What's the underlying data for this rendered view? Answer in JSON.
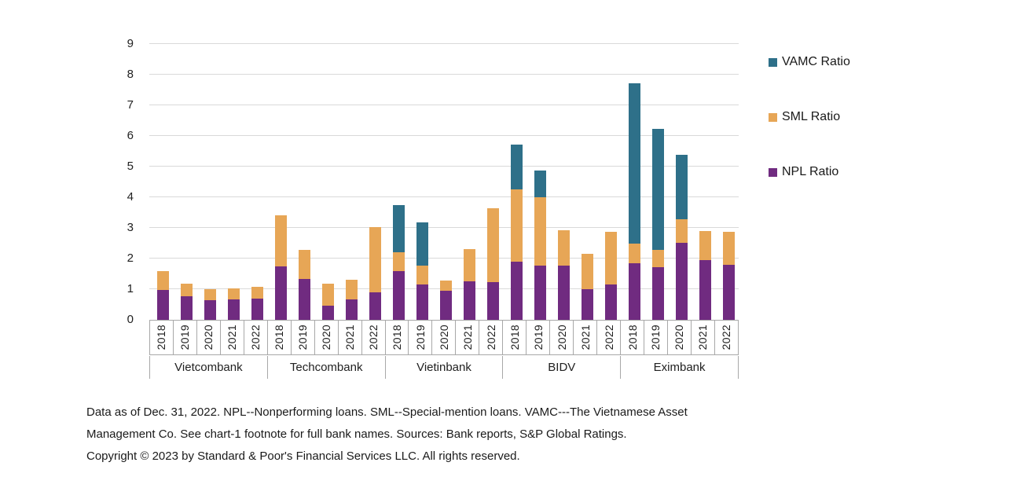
{
  "chart_data": {
    "type": "bar",
    "stacked": true,
    "title": "",
    "xlabel": "",
    "ylabel": "",
    "ylim": [
      0,
      9
    ],
    "ytick_step": 1,
    "yticks": [
      0,
      1,
      2,
      3,
      4,
      5,
      6,
      7,
      8,
      9
    ],
    "grid": true,
    "legend_position": "right",
    "group_labels": [
      "Vietcombank",
      "Techcombank",
      "Vietinbank",
      "BIDV",
      "Eximbank"
    ],
    "x_labels_per_group": [
      "2018",
      "2019",
      "2020",
      "2021",
      "2022"
    ],
    "series": [
      {
        "key": "npl",
        "name": "NPL Ratio",
        "color": "#702b80",
        "values": [
          [
            0.98,
            0.77,
            0.64,
            0.66,
            0.7
          ],
          [
            1.75,
            1.33,
            0.47,
            0.66,
            0.91
          ],
          [
            1.58,
            1.16,
            0.94,
            1.26,
            1.22
          ],
          [
            1.9,
            1.77,
            1.76,
            1.0,
            1.16
          ],
          [
            1.84,
            1.71,
            2.52,
            1.96,
            1.8
          ]
        ]
      },
      {
        "key": "sml",
        "name": "SML Ratio",
        "color": "#e7a656",
        "values": [
          [
            0.62,
            0.41,
            0.37,
            0.37,
            0.38
          ],
          [
            1.65,
            0.95,
            0.7,
            0.66,
            2.12
          ],
          [
            0.62,
            0.62,
            0.33,
            1.05,
            2.42
          ],
          [
            2.36,
            2.22,
            1.17,
            1.15,
            1.72
          ],
          [
            0.64,
            0.58,
            0.76,
            0.95,
            1.06
          ]
        ]
      },
      {
        "key": "vamc",
        "name": "VAMC Ratio",
        "color": "#2e7089",
        "values": [
          [
            0,
            0,
            0,
            0,
            0
          ],
          [
            0,
            0,
            0,
            0,
            0
          ],
          [
            1.55,
            1.4,
            0,
            0,
            0
          ],
          [
            1.46,
            0.88,
            0,
            0,
            0
          ],
          [
            5.25,
            3.95,
            2.1,
            0,
            0
          ]
        ]
      }
    ]
  },
  "legend": {
    "items": [
      {
        "label": "VAMC Ratio",
        "color": "#2e7089"
      },
      {
        "label": "SML Ratio",
        "color": "#e7a656"
      },
      {
        "label": "NPL Ratio",
        "color": "#702b80"
      }
    ]
  },
  "footnote": {
    "lines": [
      "Data as of Dec. 31, 2022. NPL--Nonperforming loans. SML--Special-mention loans. VAMC---The Vietnamese Asset",
      "Management Co. See chart-1 footnote for full bank names. Sources: Bank reports, S&P Global Ratings.",
      "Copyright © 2023 by Standard & Poor's Financial Services LLC. All rights reserved."
    ]
  },
  "colors": {
    "gridline": "#d9d9d9",
    "axis_border": "#a8a8a8",
    "text": "#212121",
    "background": "#ffffff"
  }
}
